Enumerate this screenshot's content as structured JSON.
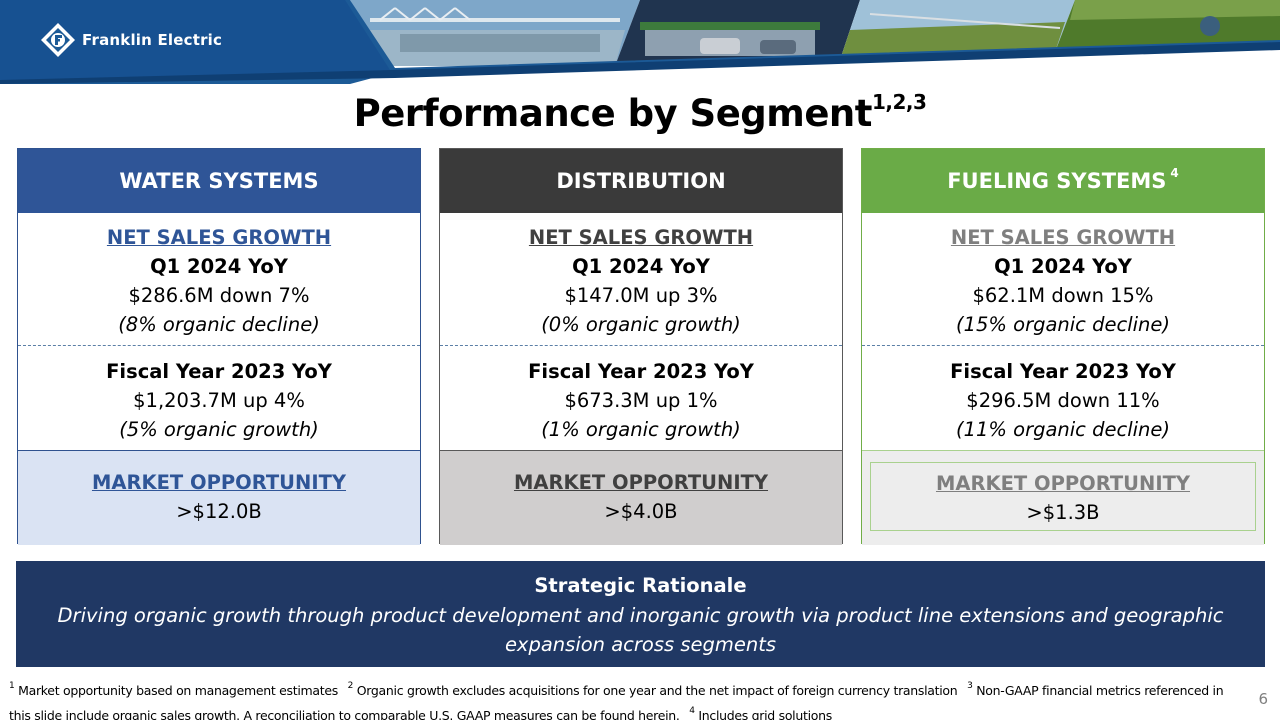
{
  "header": {
    "logo_text": "Franklin Electric",
    "brand_color": "#1f4e79"
  },
  "title": {
    "text": "Performance by Segment",
    "superscript": "1,2,3"
  },
  "segments": [
    {
      "name": "WATER SYSTEMS",
      "name_sup": "",
      "color": "#2f5597",
      "q1_heading": "NET SALES GROWTH",
      "q1_period": "Q1 2024 YoY",
      "q1_value": "$286.6M down 7%",
      "q1_organic": "(8% organic decline)",
      "fy_period": "Fiscal Year 2023 YoY",
      "fy_value": "$1,203.7M up 4%",
      "fy_organic": "(5% organic growth)",
      "market_heading": "MARKET OPPORTUNITY",
      "market_value": ">$12.0B"
    },
    {
      "name": "DISTRIBUTION",
      "name_sup": "",
      "color": "#3a3a3a",
      "q1_heading": "NET SALES GROWTH",
      "q1_period": "Q1 2024 YoY",
      "q1_value": "$147.0M up 3%",
      "q1_organic": "(0% organic growth)",
      "fy_period": "Fiscal Year 2023 YoY",
      "fy_value": "$673.3M up 1%",
      "fy_organic": "(1% organic growth)",
      "market_heading": "MARKET OPPORTUNITY",
      "market_value": ">$4.0B"
    },
    {
      "name": "FUELING SYSTEMS",
      "name_sup": "4",
      "color": "#6aab47",
      "q1_heading": "NET SALES GROWTH",
      "q1_period": "Q1 2024 YoY",
      "q1_value": "$62.1M down 15%",
      "q1_organic": "(15% organic decline)",
      "fy_period": "Fiscal Year 2023 YoY",
      "fy_value": "$296.5M down 11%",
      "fy_organic": "(11% organic decline)",
      "market_heading": "MARKET OPPORTUNITY",
      "market_value": ">$1.3B"
    }
  ],
  "rationale": {
    "title": "Strategic Rationale",
    "body": "Driving organic growth through product development and inorganic growth via product line extensions and geographic expansion across segments"
  },
  "footnotes": [
    {
      "num": "1",
      "text": "Market opportunity based on management estimates"
    },
    {
      "num": "2",
      "text": "Organic growth excludes acquisitions for one year and the net impact of foreign currency translation"
    },
    {
      "num": "3",
      "text": "Non-GAAP financial metrics referenced in this slide include organic sales growth.  A reconciliation to comparable U.S. GAAP measures can be found herein."
    },
    {
      "num": "4",
      "text": "Includes grid solutions"
    }
  ],
  "page_number": "6"
}
